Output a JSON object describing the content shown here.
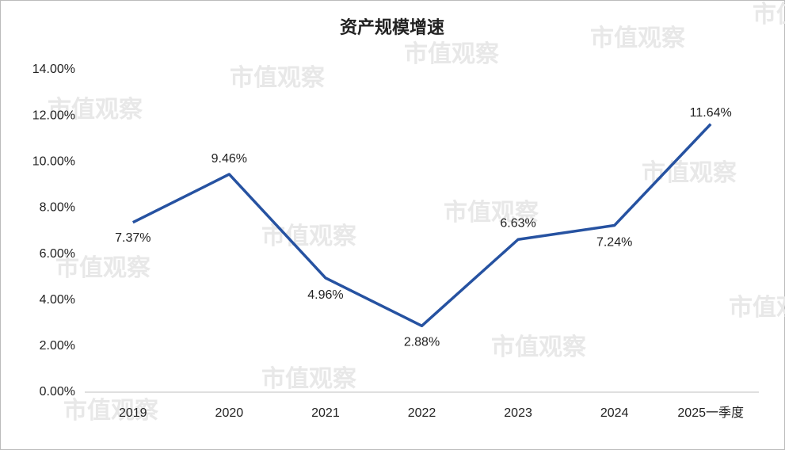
{
  "chart_data": {
    "type": "line",
    "title": "资产规模增速",
    "watermark": "市值观察",
    "categories": [
      "2019",
      "2020",
      "2021",
      "2022",
      "2023",
      "2024",
      "2025一季度"
    ],
    "series": [
      {
        "name": "资产规模增速",
        "color": "#2652a1",
        "values": [
          7.37,
          9.46,
          4.96,
          2.88,
          6.63,
          7.24,
          11.64
        ],
        "value_labels": [
          "7.37%",
          "9.46%",
          "4.96%",
          "2.88%",
          "6.63%",
          "7.24%",
          "11.64%"
        ]
      }
    ],
    "ylim": [
      0,
      14
    ],
    "yticks": [
      {
        "value": 0,
        "label": "0.00%"
      },
      {
        "value": 2,
        "label": "2.00%"
      },
      {
        "value": 4,
        "label": "4.00%"
      },
      {
        "value": 6,
        "label": "6.00%"
      },
      {
        "value": 8,
        "label": "8.00%"
      },
      {
        "value": 10,
        "label": "10.00%"
      },
      {
        "value": 12,
        "label": "12.00%"
      },
      {
        "value": 14,
        "label": "14.00%"
      }
    ],
    "grid": false
  }
}
